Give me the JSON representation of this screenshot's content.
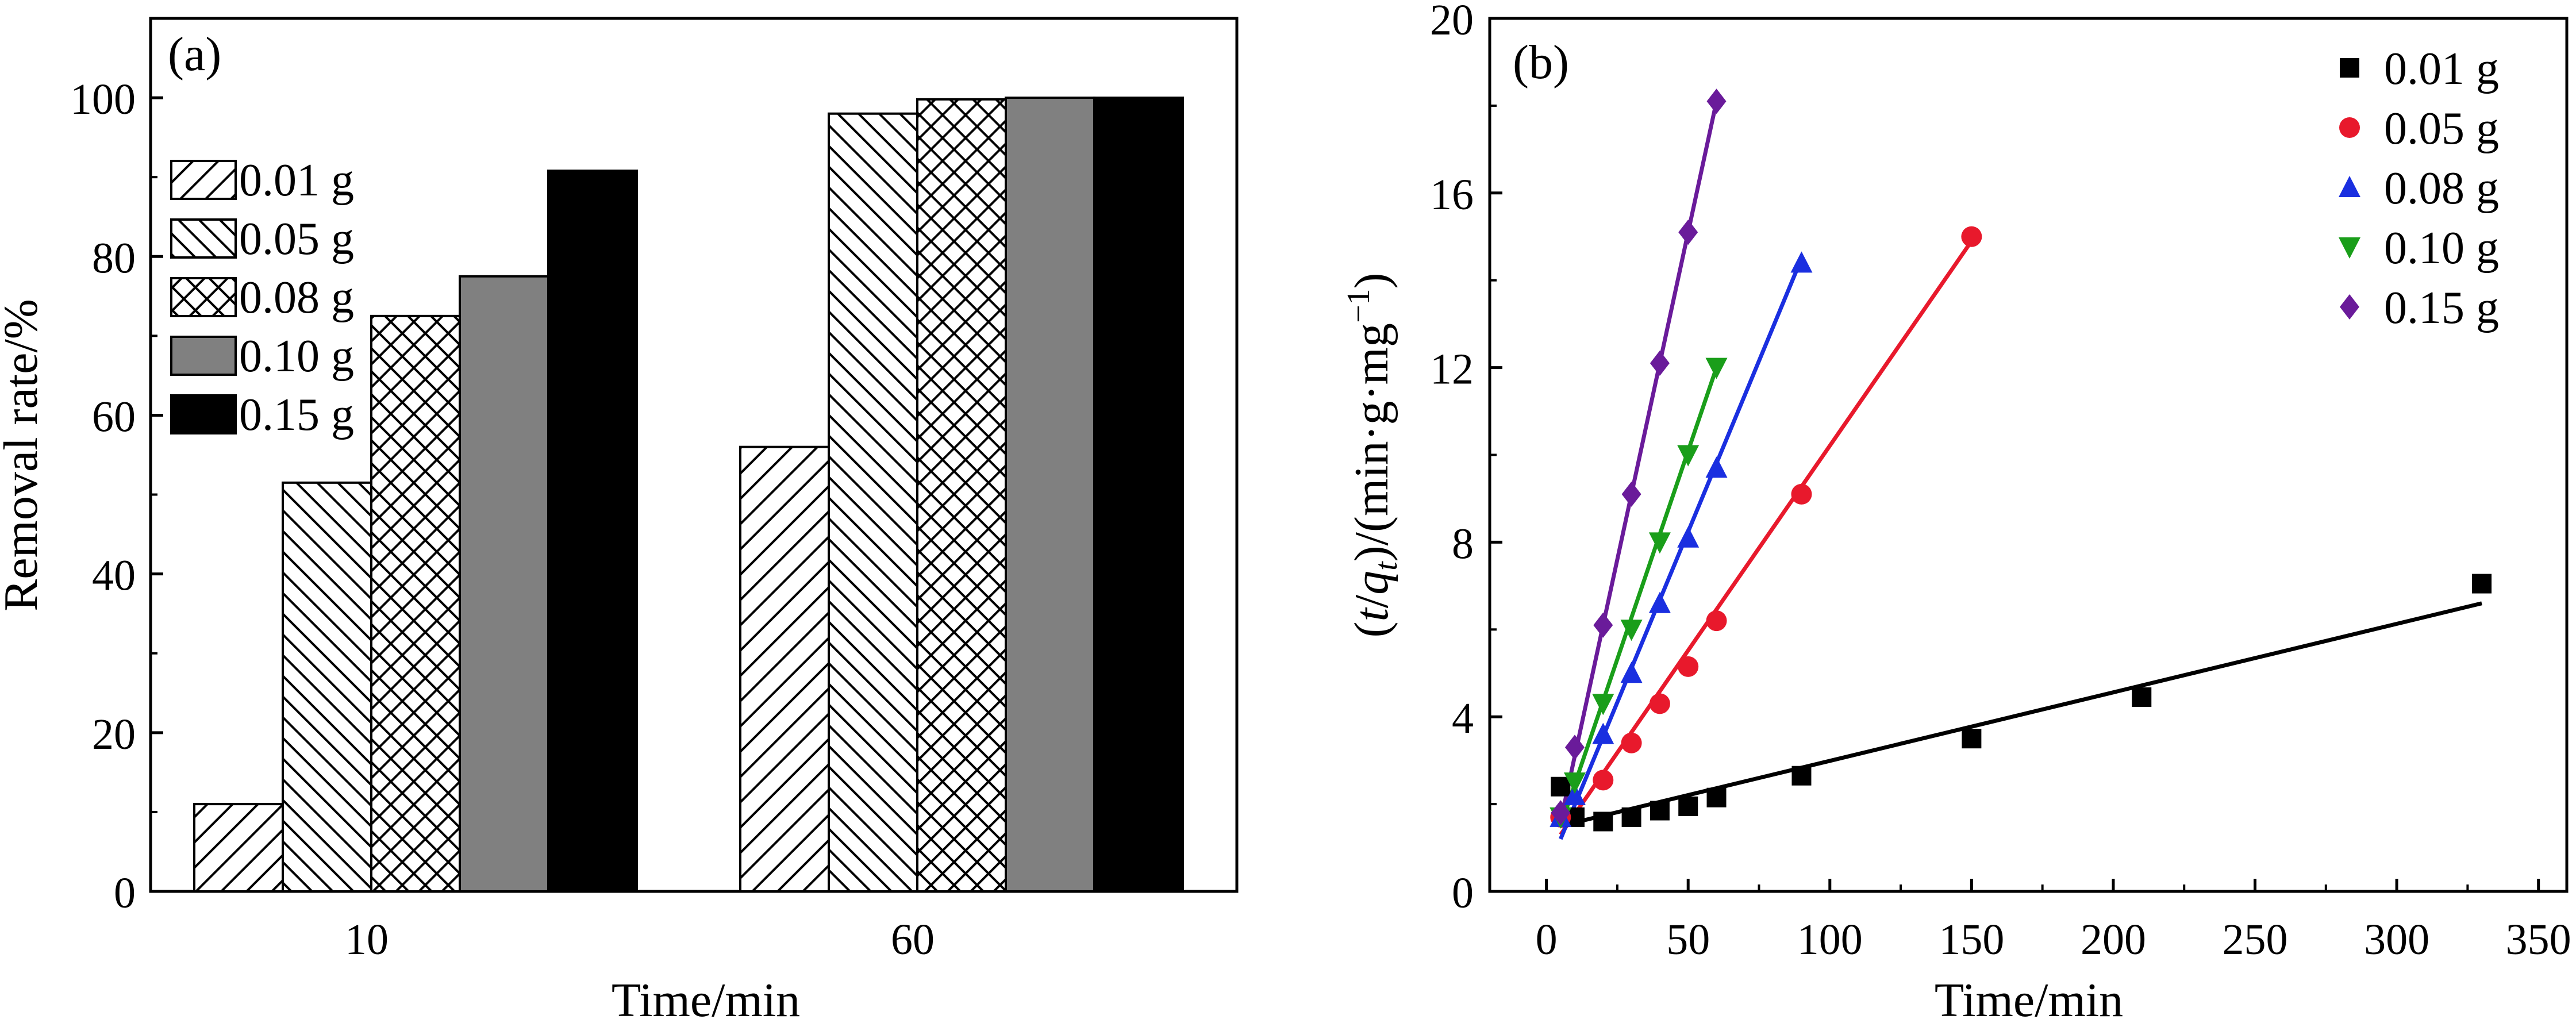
{
  "chart_data": [
    {
      "type": "bar",
      "panel_label": "(a)",
      "xlabel": "Time/min",
      "ylabel": "Removal rate/%",
      "categories": [
        "10",
        "60"
      ],
      "ylim": [
        0,
        110
      ],
      "yticks": [
        0,
        20,
        40,
        60,
        80,
        100
      ],
      "legend_position": "upper-left",
      "series": [
        {
          "name": "0.01 g",
          "values": [
            11,
            56
          ],
          "pattern": "hatch-forward"
        },
        {
          "name": "0.05 g",
          "values": [
            51.5,
            98
          ],
          "pattern": "hatch-back"
        },
        {
          "name": "0.08 g",
          "values": [
            72.5,
            99.8
          ],
          "pattern": "crosshatch"
        },
        {
          "name": "0.10 g",
          "values": [
            77.5,
            100
          ],
          "pattern": "gray",
          "color": "#808080"
        },
        {
          "name": "0.15 g",
          "values": [
            90.8,
            100
          ],
          "pattern": "black",
          "color": "#000000"
        }
      ]
    },
    {
      "type": "scatter",
      "panel_label": "(b)",
      "xlabel": "Time/min",
      "ylabel_parts": {
        "open": "(",
        "t": "t",
        "slash": "/",
        "q": "q",
        "q_sub": "t",
        "mid": ")/(min·g·mg",
        "sup": "−1",
        "close": ")"
      },
      "xlim": [
        -20,
        360
      ],
      "ylim": [
        0,
        20
      ],
      "xticks": [
        0,
        50,
        100,
        150,
        200,
        250,
        300,
        350
      ],
      "yticks": [
        0,
        4,
        8,
        12,
        16,
        20
      ],
      "legend_position": "upper-right",
      "series": [
        {
          "name": "0.01 g",
          "color": "#000000",
          "marker": "square",
          "x": [
            5,
            10,
            20,
            30,
            40,
            50,
            60,
            90,
            150,
            210,
            330
          ],
          "y": [
            2.4,
            1.7,
            1.6,
            1.7,
            1.85,
            1.95,
            2.15,
            2.65,
            3.5,
            4.45,
            7.05
          ],
          "fit": {
            "x": [
              5,
              330
            ],
            "y": [
              1.5,
              6.6
            ]
          }
        },
        {
          "name": "0.05 g",
          "color": "#e8192c",
          "marker": "circle",
          "x": [
            5,
            20,
            30,
            40,
            50,
            60,
            90,
            150
          ],
          "y": [
            1.7,
            2.55,
            3.4,
            4.3,
            5.15,
            6.2,
            9.1,
            15.0
          ],
          "fit": {
            "x": [
              5,
              150
            ],
            "y": [
              1.3,
              14.9
            ]
          }
        },
        {
          "name": "0.08 g",
          "color": "#1a2fe0",
          "marker": "triangle-up",
          "x": [
            5,
            10,
            20,
            30,
            40,
            50,
            60,
            90
          ],
          "y": [
            1.7,
            2.2,
            3.6,
            5.0,
            6.6,
            8.1,
            9.7,
            14.4
          ],
          "fit": {
            "x": [
              5,
              90
            ],
            "y": [
              1.2,
              14.5
            ]
          }
        },
        {
          "name": "0.10 g",
          "color": "#1a9e1a",
          "marker": "triangle-down",
          "x": [
            5,
            10,
            20,
            30,
            40,
            50,
            60
          ],
          "y": [
            1.7,
            2.5,
            4.3,
            6.0,
            8.0,
            10.0,
            12.0
          ],
          "fit": {
            "x": [
              5,
              60
            ],
            "y": [
              1.5,
              12.0
            ]
          }
        },
        {
          "name": "0.15 g",
          "color": "#6a1b9a",
          "marker": "diamond",
          "x": [
            5,
            10,
            20,
            30,
            40,
            50,
            60
          ],
          "y": [
            1.8,
            3.3,
            6.1,
            9.1,
            12.1,
            15.1,
            18.1
          ],
          "fit": {
            "x": [
              5,
              60
            ],
            "y": [
              1.6,
              18.1
            ]
          }
        }
      ]
    }
  ]
}
